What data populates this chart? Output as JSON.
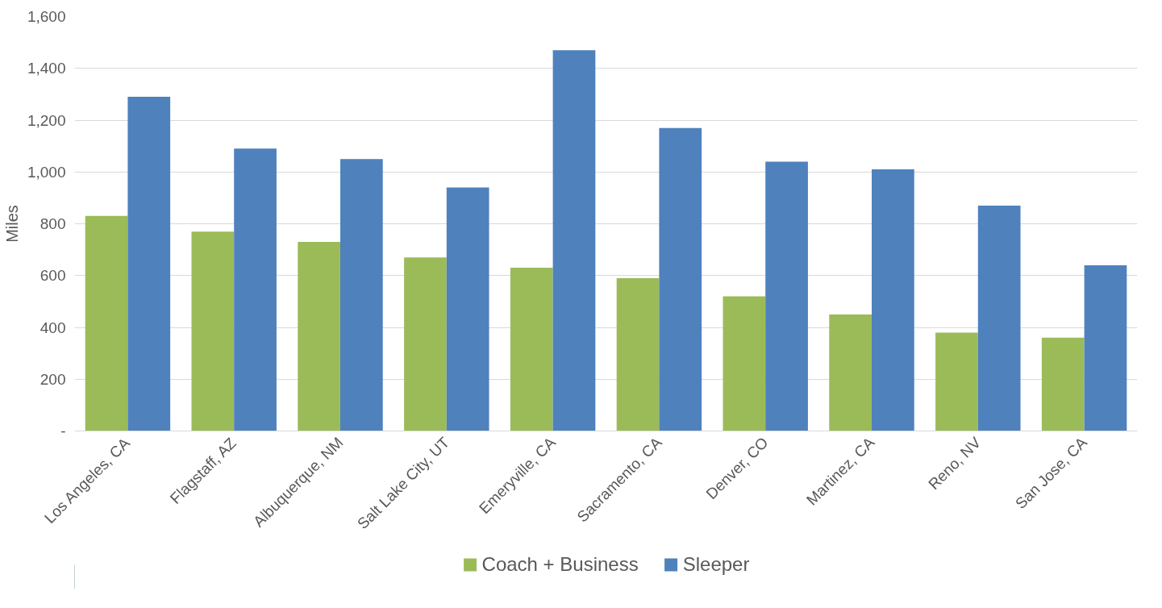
{
  "chart_data": {
    "type": "bar",
    "ylabel": "Miles",
    "categories": [
      "Los Angeles, CA",
      "Flagstaff, AZ",
      "Albuquerque, NM",
      "Salt Lake City, UT",
      "Emeryville, CA",
      "Sacramento, CA",
      "Denver, CO",
      "Martinez, CA",
      "Reno, NV",
      "San Jose, CA"
    ],
    "series": [
      {
        "name": "Coach + Business",
        "color": "#9bbb59",
        "values": [
          830,
          770,
          730,
          670,
          630,
          590,
          520,
          450,
          380,
          360
        ]
      },
      {
        "name": "Sleeper",
        "color": "#4f81bd",
        "values": [
          1290,
          1090,
          1050,
          940,
          1470,
          1170,
          1040,
          1010,
          870,
          640
        ]
      }
    ],
    "ylim": [
      0,
      1600
    ],
    "yticks": [
      {
        "value": 0,
        "label": "-"
      },
      {
        "value": 200,
        "label": "200"
      },
      {
        "value": 400,
        "label": "400"
      },
      {
        "value": 600,
        "label": "600"
      },
      {
        "value": 800,
        "label": "800"
      },
      {
        "value": 1000,
        "label": "1,000"
      },
      {
        "value": 1200,
        "label": "1,200"
      },
      {
        "value": 1400,
        "label": "1,400"
      },
      {
        "value": 1600,
        "label": "1,600"
      }
    ],
    "grid": "y",
    "legend": "bottom"
  }
}
